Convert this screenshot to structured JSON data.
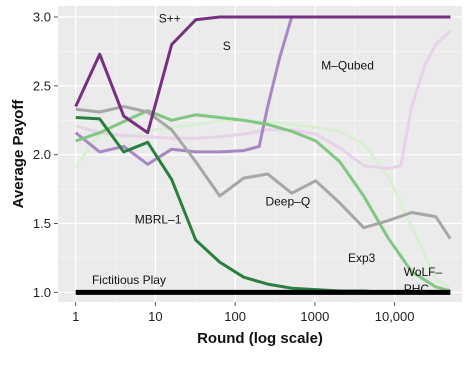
{
  "chart_data": {
    "type": "line",
    "title": "",
    "xlabel": "Round (log scale)",
    "ylabel": "Average Payoff",
    "xscale": "log",
    "xlim": [
      0.6,
      70000
    ],
    "ylim": [
      0.93,
      3.08
    ],
    "xticks": [
      {
        "value": 1,
        "label": "1"
      },
      {
        "value": 10,
        "label": "10"
      },
      {
        "value": 100,
        "label": "100"
      },
      {
        "value": 1000,
        "label": "1000"
      },
      {
        "value": 10000,
        "label": "10,000"
      }
    ],
    "yticks": [
      {
        "value": 1.0,
        "label": "1.0"
      },
      {
        "value": 1.5,
        "label": "1.5"
      },
      {
        "value": 2.0,
        "label": "2.0"
      },
      {
        "value": 2.5,
        "label": "2.5"
      },
      {
        "value": 3.0,
        "label": "3.0"
      }
    ],
    "grid": true,
    "background": "#ebebeb",
    "legend": "none",
    "series": [
      {
        "name": "WoLF-PHC",
        "color": "#d9efd3",
        "width": 3,
        "points": [
          [
            1,
            1.91
          ],
          [
            2,
            2.15
          ],
          [
            4,
            2.13
          ],
          [
            8,
            2.17
          ],
          [
            16,
            2.2
          ],
          [
            32,
            2.22
          ],
          [
            64,
            2.25
          ],
          [
            128,
            2.25
          ],
          [
            256,
            2.24
          ],
          [
            512,
            2.22
          ],
          [
            1024,
            2.2
          ],
          [
            2048,
            2.17
          ],
          [
            4096,
            2.08
          ],
          [
            8192,
            1.85
          ],
          [
            16384,
            1.48
          ],
          [
            32768,
            1.1
          ],
          [
            50000,
            1.03
          ]
        ],
        "label": {
          "text": "WoLF–\nPHC",
          "x": 13000,
          "y": 1.12
        }
      },
      {
        "name": "M-Qubed",
        "color": "#e8d2ea",
        "width": 3,
        "points": [
          [
            1,
            2.21
          ],
          [
            2,
            2.16
          ],
          [
            4,
            2.14
          ],
          [
            8,
            2.13
          ],
          [
            16,
            2.12
          ],
          [
            32,
            2.12
          ],
          [
            64,
            2.13
          ],
          [
            128,
            2.15
          ],
          [
            256,
            2.18
          ],
          [
            512,
            2.18
          ],
          [
            1024,
            2.15
          ],
          [
            2048,
            2.05
          ],
          [
            4096,
            1.92
          ],
          [
            8192,
            1.9
          ],
          [
            12000,
            1.92
          ],
          [
            16384,
            2.35
          ],
          [
            24000,
            2.65
          ],
          [
            32768,
            2.8
          ],
          [
            50000,
            2.9
          ]
        ],
        "label": {
          "text": "M–Qubed",
          "x": 1200,
          "y": 2.62
        }
      },
      {
        "name": "S",
        "color": "#a788c4",
        "width": 3,
        "points": [
          [
            1,
            2.16
          ],
          [
            2,
            2.02
          ],
          [
            4,
            2.06
          ],
          [
            8,
            1.93
          ],
          [
            16,
            2.04
          ],
          [
            32,
            2.02
          ],
          [
            64,
            2.02
          ],
          [
            128,
            2.03
          ],
          [
            200,
            2.06
          ],
          [
            256,
            2.35
          ],
          [
            360,
            2.7
          ],
          [
            512,
            3.0
          ],
          [
            1024,
            3.0
          ],
          [
            2048,
            3.0
          ],
          [
            4096,
            3.0
          ],
          [
            8192,
            3.0
          ],
          [
            16384,
            3.0
          ],
          [
            32768,
            3.0
          ],
          [
            50000,
            3.0
          ]
        ],
        "label": {
          "text": "S",
          "x": 70,
          "y": 2.76
        }
      },
      {
        "name": "Exp3",
        "color": "#80c781",
        "width": 3,
        "points": [
          [
            1,
            2.1
          ],
          [
            2,
            2.16
          ],
          [
            4,
            2.24
          ],
          [
            8,
            2.32
          ],
          [
            16,
            2.25
          ],
          [
            32,
            2.29
          ],
          [
            64,
            2.27
          ],
          [
            128,
            2.25
          ],
          [
            256,
            2.22
          ],
          [
            512,
            2.17
          ],
          [
            1024,
            2.1
          ],
          [
            2048,
            1.95
          ],
          [
            4096,
            1.7
          ],
          [
            8192,
            1.4
          ],
          [
            16384,
            1.15
          ],
          [
            32768,
            1.04
          ],
          [
            50000,
            1.01
          ]
        ],
        "label": {
          "text": "Exp3",
          "x": 2600,
          "y": 1.22
        }
      },
      {
        "name": "Deep-Q",
        "color": "#a6a6a6",
        "width": 3,
        "points": [
          [
            1,
            2.33
          ],
          [
            2,
            2.31
          ],
          [
            4,
            2.35
          ],
          [
            8,
            2.31
          ],
          [
            16,
            2.18
          ],
          [
            32,
            1.95
          ],
          [
            64,
            1.7
          ],
          [
            128,
            1.83
          ],
          [
            256,
            1.86
          ],
          [
            512,
            1.72
          ],
          [
            1024,
            1.81
          ],
          [
            2048,
            1.65
          ],
          [
            4096,
            1.47
          ],
          [
            8192,
            1.52
          ],
          [
            16384,
            1.58
          ],
          [
            32768,
            1.55
          ],
          [
            50000,
            1.39
          ]
        ],
        "label": {
          "text": "Deep–Q",
          "x": 240,
          "y": 1.63
        }
      },
      {
        "name": "S++",
        "color": "#76307f",
        "width": 3,
        "points": [
          [
            1,
            2.35
          ],
          [
            2,
            2.73
          ],
          [
            4,
            2.28
          ],
          [
            8,
            2.16
          ],
          [
            16,
            2.8
          ],
          [
            32,
            2.98
          ],
          [
            64,
            3.0
          ],
          [
            128,
            3.0
          ],
          [
            256,
            3.0
          ],
          [
            512,
            3.0
          ],
          [
            1024,
            3.0
          ],
          [
            2048,
            3.0
          ],
          [
            4096,
            3.0
          ],
          [
            8192,
            3.0
          ],
          [
            16384,
            3.0
          ],
          [
            32768,
            3.0
          ],
          [
            50000,
            3.0
          ]
        ],
        "label": {
          "text": "S++",
          "x": 11,
          "y": 2.96
        }
      },
      {
        "name": "MBRL-1",
        "color": "#2a7f3d",
        "width": 3,
        "points": [
          [
            1,
            2.27
          ],
          [
            2,
            2.26
          ],
          [
            4,
            2.02
          ],
          [
            8,
            2.09
          ],
          [
            16,
            1.82
          ],
          [
            32,
            1.38
          ],
          [
            64,
            1.22
          ],
          [
            128,
            1.11
          ],
          [
            256,
            1.06
          ],
          [
            512,
            1.03
          ],
          [
            1024,
            1.02
          ],
          [
            2048,
            1.01
          ],
          [
            4096,
            1.01
          ],
          [
            8192,
            1.0
          ],
          [
            16384,
            1.0
          ],
          [
            32768,
            1.0
          ],
          [
            50000,
            1.0
          ]
        ],
        "label": {
          "text": "MBRL–1",
          "x": 5.5,
          "y": 1.5
        }
      },
      {
        "name": "Fictitious Play",
        "color": "#000000",
        "width": 5,
        "points": [
          [
            1,
            1.0
          ],
          [
            2,
            1.0
          ],
          [
            4,
            1.0
          ],
          [
            8,
            1.0
          ],
          [
            16,
            1.0
          ],
          [
            32,
            1.0
          ],
          [
            64,
            1.0
          ],
          [
            128,
            1.0
          ],
          [
            256,
            1.0
          ],
          [
            512,
            1.0
          ],
          [
            1024,
            1.0
          ],
          [
            2048,
            1.0
          ],
          [
            4096,
            1.0
          ],
          [
            8192,
            1.0
          ],
          [
            16384,
            1.0
          ],
          [
            32768,
            1.0
          ],
          [
            50000,
            1.0
          ]
        ],
        "label": {
          "text": "Fictitious Play",
          "x": 1.6,
          "y": 1.06
        }
      }
    ]
  }
}
